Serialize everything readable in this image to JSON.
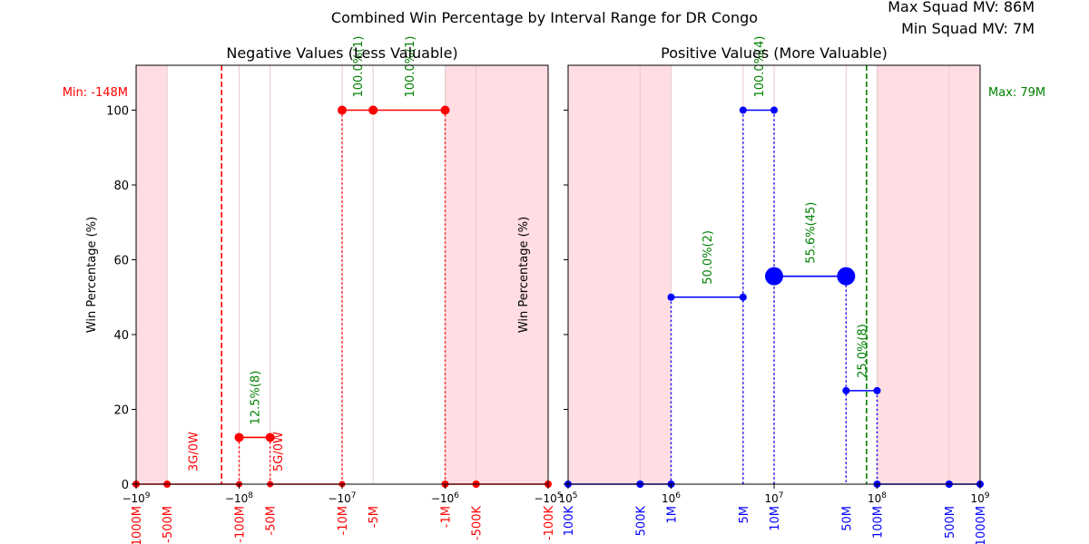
{
  "suptitle": "Combined Win Percentage by Interval Range for DR Congo",
  "squad_info": {
    "max_label": "Max Squad MV: 86M",
    "min_label": "Min Squad MV: 7M"
  },
  "colors": {
    "negative_series": "#ff0000",
    "positive_series": "#0000ff",
    "annotation": "#008000",
    "shade": "#ffdde2",
    "axis": "#000000"
  },
  "chart_data": [
    {
      "type": "line",
      "title": "Negative Values (Less Valuable)",
      "xlabel": "",
      "ylabel": "Win Percentage (%)",
      "x_scale": "symlog",
      "xlim": [
        -1000000000,
        -100000
      ],
      "ylim": [
        0,
        112
      ],
      "yticks": [
        0,
        20,
        40,
        60,
        80,
        100
      ],
      "grid": false,
      "xtick_labels": [
        {
          "x": -1000000000,
          "label": "−10^9"
        },
        {
          "x": -100000000,
          "label": "−10^8"
        },
        {
          "x": -10000000,
          "label": "−10^7"
        },
        {
          "x": -1000000,
          "label": "−10^6"
        },
        {
          "x": -100000,
          "label": "−10^5"
        }
      ],
      "boundary_labels": [
        {
          "x": -1000000000,
          "label": "-1000M"
        },
        {
          "x": -500000000,
          "label": "-500M"
        },
        {
          "x": -100000000,
          "label": "-100M"
        },
        {
          "x": -50000000,
          "label": "-50M"
        },
        {
          "x": -10000000,
          "label": "-10M"
        },
        {
          "x": -5000000,
          "label": "-5M"
        },
        {
          "x": -1000000,
          "label": "-1M"
        },
        {
          "x": -500000,
          "label": "-500K"
        },
        {
          "x": -100000,
          "label": "-100K"
        }
      ],
      "shaded_ranges": [
        [
          -1000000000,
          -500000000
        ],
        [
          -1000000,
          -100000
        ]
      ],
      "ref_line": {
        "x": -148000000,
        "label": "Min: -148M",
        "color": "#ff0000"
      },
      "segments": [
        {
          "x_start": -1000000000,
          "x_end": -500000000,
          "value": 0,
          "markers": "small"
        },
        {
          "x_start": -500000000,
          "x_end": -100000000,
          "value": 0,
          "markers": "none"
        },
        {
          "x_start": -100000000,
          "x_end": -50000000,
          "value": 12.5,
          "markers": "medium",
          "label": "12.5%(8)",
          "label_color": "green"
        },
        {
          "x_start": -50000000,
          "x_end": -10000000,
          "value": 0,
          "markers": "none"
        },
        {
          "x_start": -10000000,
          "x_end": -5000000,
          "value": 100,
          "markers": "medium",
          "label": "100.0%(1)",
          "label_color": "green"
        },
        {
          "x_start": -5000000,
          "x_end": -1000000,
          "value": 100,
          "markers": "medium",
          "label": "100.0%(1)",
          "label_color": "green"
        },
        {
          "x_start": -1000000,
          "x_end": -500000,
          "value": 0,
          "markers": "small"
        },
        {
          "x_start": -500000,
          "x_end": -100000,
          "value": 0,
          "markers": "small"
        }
      ],
      "zero_points": [
        -1000000000,
        -500000000,
        -100000000,
        -50000000,
        -10000000,
        -1000000,
        -500000,
        -100000
      ],
      "dotted_drops": [
        -100000000,
        -50000000,
        -10000000,
        -1000000
      ],
      "empty_labels": [
        {
          "x": -200000000,
          "text": "3G/0W"
        },
        {
          "x": -30000000,
          "text": "5G/0W"
        }
      ]
    },
    {
      "type": "line",
      "title": "Positive Values (More Valuable)",
      "xlabel": "",
      "ylabel": "Win Percentage (%)",
      "x_scale": "log",
      "xlim": [
        100000,
        1000000000
      ],
      "ylim": [
        0,
        112
      ],
      "yticks": [
        0,
        20,
        40,
        60,
        80,
        100
      ],
      "grid": false,
      "xtick_labels": [
        {
          "x": 100000,
          "label": "10^5"
        },
        {
          "x": 1000000,
          "label": "10^6"
        },
        {
          "x": 10000000,
          "label": "10^7"
        },
        {
          "x": 100000000,
          "label": "10^8"
        },
        {
          "x": 1000000000,
          "label": "10^9"
        }
      ],
      "boundary_labels": [
        {
          "x": 100000,
          "label": "100K"
        },
        {
          "x": 500000,
          "label": "500K"
        },
        {
          "x": 1000000,
          "label": "1M"
        },
        {
          "x": 5000000,
          "label": "5M"
        },
        {
          "x": 10000000,
          "label": "10M"
        },
        {
          "x": 50000000,
          "label": "50M"
        },
        {
          "x": 100000000,
          "label": "100M"
        },
        {
          "x": 500000000,
          "label": "500M"
        },
        {
          "x": 1000000000,
          "label": "1000M"
        }
      ],
      "shaded_ranges": [
        [
          100000,
          1000000
        ],
        [
          100000000,
          1000000000
        ]
      ],
      "ref_line": {
        "x": 79000000,
        "label": "Max: 79M",
        "color": "#008000"
      },
      "segments": [
        {
          "x_start": 100000,
          "x_end": 500000,
          "value": 0,
          "markers": "small"
        },
        {
          "x_start": 500000,
          "x_end": 1000000,
          "value": 0,
          "markers": "small"
        },
        {
          "x_start": 1000000,
          "x_end": 5000000,
          "value": 50,
          "markers": "small",
          "label": "50.0%(2)",
          "label_color": "green"
        },
        {
          "x_start": 5000000,
          "x_end": 10000000,
          "value": 100,
          "markers": "small",
          "label": "100.0%(4)",
          "label_color": "green"
        },
        {
          "x_start": 10000000,
          "x_end": 50000000,
          "value": 55.6,
          "markers": "large",
          "label": "55.6%(45)",
          "label_color": "green"
        },
        {
          "x_start": 50000000,
          "x_end": 100000000,
          "value": 25,
          "markers": "small",
          "label": "25.0%(8)",
          "label_color": "green"
        },
        {
          "x_start": 100000000,
          "x_end": 500000000,
          "value": 0,
          "markers": "small"
        },
        {
          "x_start": 500000000,
          "x_end": 1000000000,
          "value": 0,
          "markers": "small"
        }
      ],
      "zero_points": [
        100000,
        500000,
        1000000,
        100000000,
        500000000,
        1000000000
      ],
      "dotted_drops": [
        1000000,
        5000000,
        10000000,
        50000000,
        100000000
      ],
      "empty_labels": []
    }
  ]
}
